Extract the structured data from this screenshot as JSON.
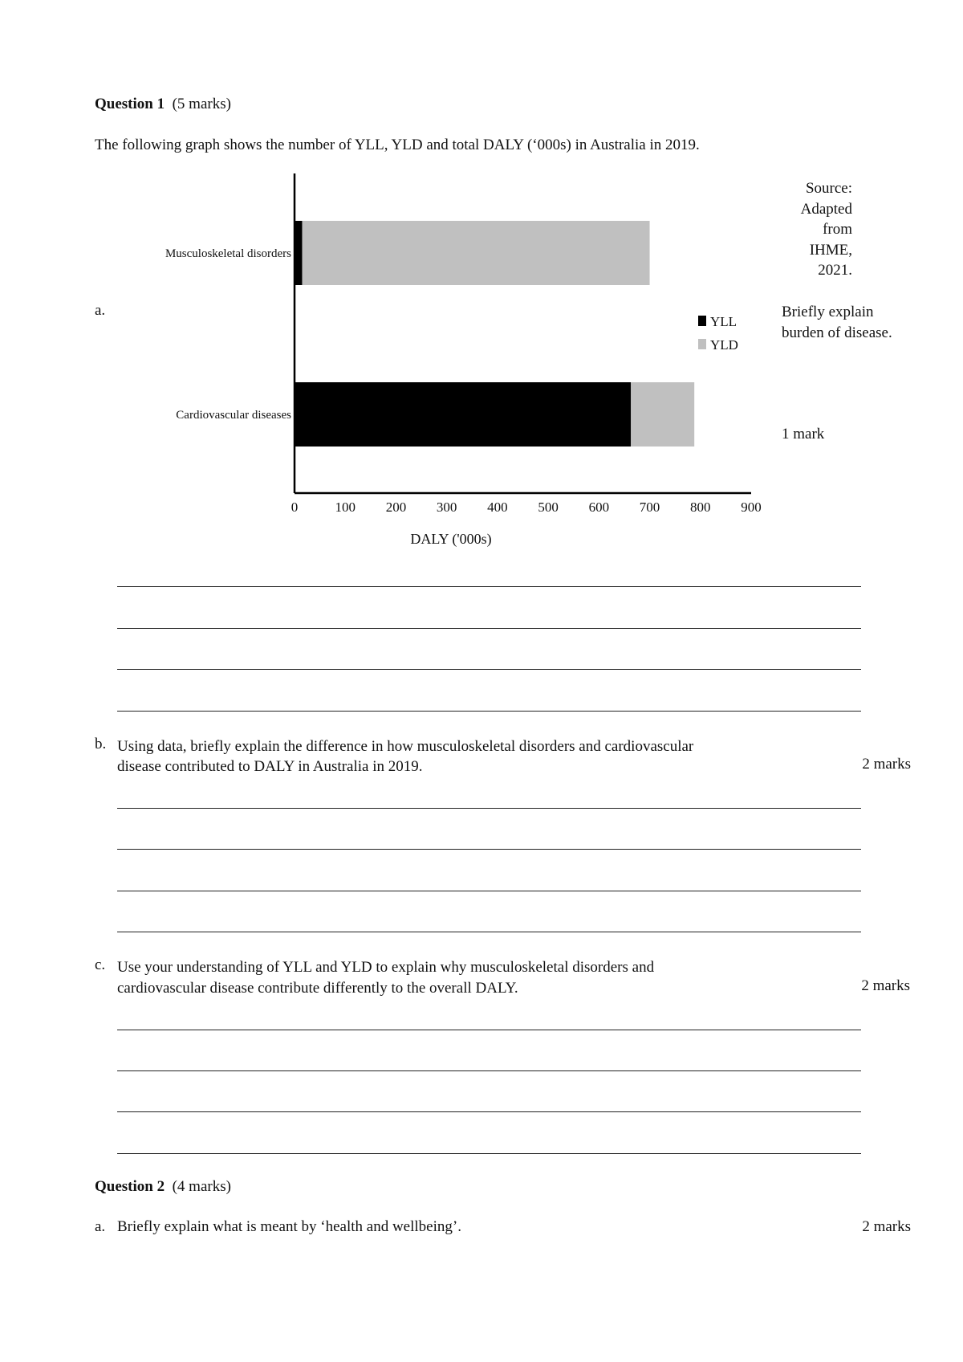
{
  "q1": {
    "title": "Question 1",
    "marks": "(5 marks)",
    "intro": "The following graph shows the number of YLL, YLD and total DALY (‘000s) in Australia in 2019.",
    "source_lines": [
      "Source:",
      "Adapted",
      "from",
      "IHME,",
      "2021."
    ],
    "a": {
      "label": "a.",
      "text_lines": [
        "Briefly explain",
        "burden of disease."
      ],
      "marks": "1 mark"
    },
    "b": {
      "label": "b.",
      "text_lines": [
        "Using data, briefly explain the difference in how musculoskeletal disorders and cardiovascular",
        "disease contributed to DALY in Australia in 2019."
      ],
      "marks": "2 marks"
    },
    "c": {
      "label": "c.",
      "text_lines": [
        "Use your understanding of YLL and YLD to explain why musculoskeletal disorders and",
        "cardiovascular disease contribute differently to the overall DALY."
      ],
      "marks": "2 marks"
    }
  },
  "q2": {
    "title": "Question 2",
    "marks": "(4 marks)",
    "a": {
      "label": "a.",
      "text": "Briefly explain what is meant by ‘health and wellbeing’.",
      "marks": "2 marks"
    }
  },
  "chart_data": {
    "type": "bar",
    "orientation": "horizontal",
    "stacked": true,
    "categories": [
      "Musculoskeletal disorders",
      "Cardiovascular diseases"
    ],
    "series": [
      {
        "name": "YLL",
        "values": [
          15,
          663
        ],
        "color": "#000000"
      },
      {
        "name": "YLD",
        "values": [
          685,
          125
        ],
        "color": "#c0c0c0"
      }
    ],
    "xlabel": "DALY ('000s)",
    "ylabel": "",
    "xlim": [
      0,
      900
    ],
    "xticks": [
      "0",
      "100",
      "200",
      "300",
      "400",
      "500",
      "600",
      "700",
      "800",
      "900"
    ],
    "grid": false,
    "legend": "right"
  }
}
